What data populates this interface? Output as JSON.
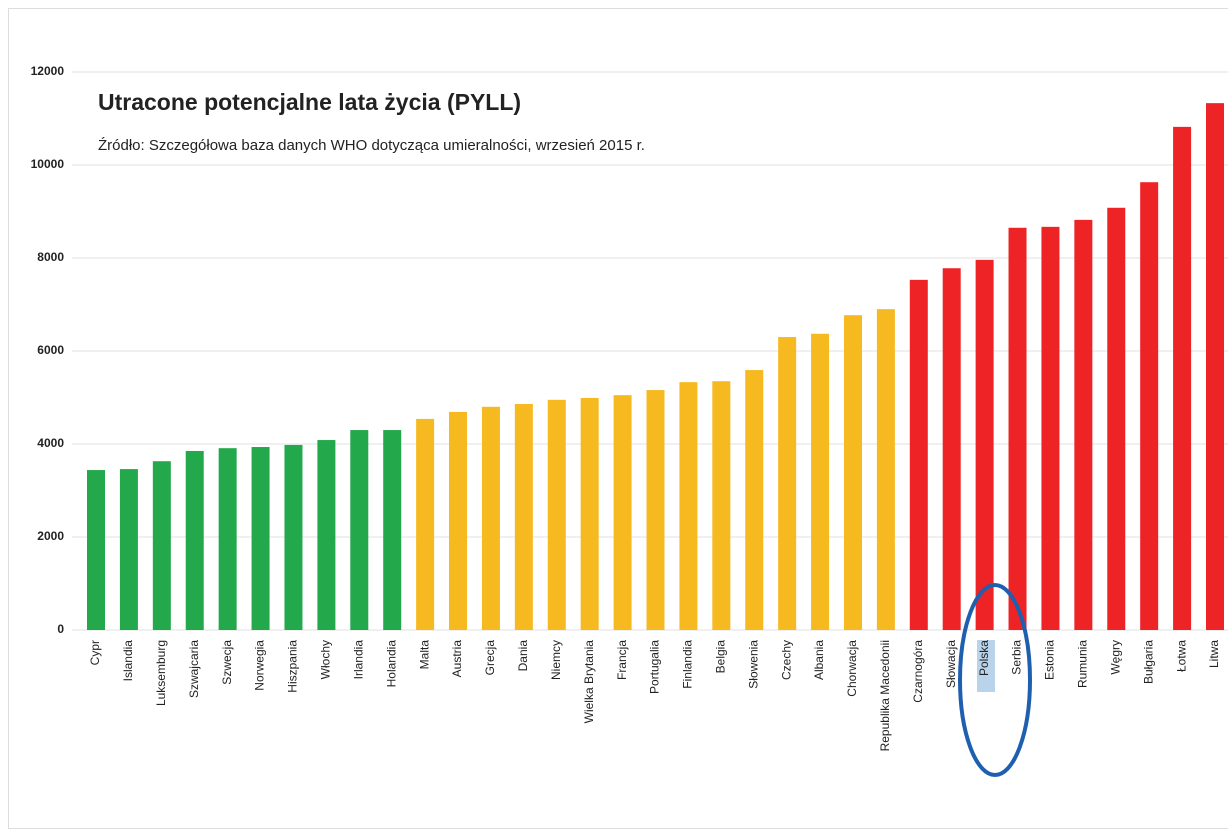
{
  "chart_data": {
    "type": "bar",
    "title": "Utracone potencjalne lata życia (PYLL)",
    "subtitle": "Źródło: Szczegółowa baza danych WHO dotycząca umieralności, wrzesień 2015 r.",
    "categories": [
      "Cypr",
      "Islandia",
      "Luksemburg",
      "Szwajcaria",
      "Szwecja",
      "Norwegia",
      "Hiszpania",
      "Włochy",
      "Irlandia",
      "Holandia",
      "Malta",
      "Austria",
      "Grecja",
      "Dania",
      "Niemcy",
      "Wielka Brytania",
      "Francja",
      "Portugalia",
      "Finlandia",
      "Belgia",
      "Słowenia",
      "Czechy",
      "Albania",
      "Chorwacja",
      "Republika Macedonii",
      "Czarnogóra",
      "Słowacja",
      "Polska",
      "Serbia",
      "Estonia",
      "Rumunia",
      "Węgry",
      "Bułgaria",
      "Łotwa",
      "Litwa"
    ],
    "values": [
      3440,
      3460,
      3630,
      3850,
      3910,
      3935,
      3980,
      4085,
      4300,
      4300,
      4540,
      4690,
      4800,
      4860,
      4950,
      4990,
      5050,
      5160,
      5330,
      5350,
      5590,
      6300,
      6370,
      6770,
      6900,
      7530,
      7780,
      7960,
      8650,
      8670,
      8820,
      9080,
      9630,
      10820,
      11330
    ],
    "colors": [
      "#23a84b",
      "#23a84b",
      "#23a84b",
      "#23a84b",
      "#23a84b",
      "#23a84b",
      "#23a84b",
      "#23a84b",
      "#23a84b",
      "#23a84b",
      "#f6b920",
      "#f6b920",
      "#f6b920",
      "#f6b920",
      "#f6b920",
      "#f6b920",
      "#f6b920",
      "#f6b920",
      "#f6b920",
      "#f6b920",
      "#f6b920",
      "#f6b920",
      "#f6b920",
      "#f6b920",
      "#f6b920",
      "#ee2326",
      "#ee2326",
      "#ee2326",
      "#ee2326",
      "#ee2326",
      "#ee2326",
      "#ee2326",
      "#ee2326",
      "#ee2326",
      "#ee2326"
    ],
    "ylim": [
      0,
      12000
    ],
    "yticks": [
      0,
      2000,
      4000,
      6000,
      8000,
      10000,
      12000
    ],
    "grid": true
  }
}
